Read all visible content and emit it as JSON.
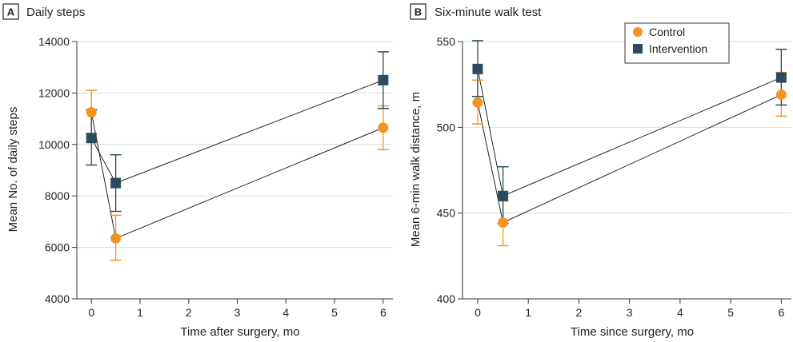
{
  "colors": {
    "control": "#f4941f",
    "intervention": "#2a4d5d",
    "ink": "#222222",
    "grid": "#dcdcdc"
  },
  "chart_data": [
    {
      "type": "line",
      "panel_letter": "A",
      "title": "Daily steps",
      "xlabel": "Time after surgery, mo",
      "ylabel": "Mean No. of daily steps",
      "xlim": [
        -0.3,
        6.2
      ],
      "ylim": [
        4000,
        14000
      ],
      "xticks": [
        0,
        1,
        2,
        3,
        4,
        5,
        6
      ],
      "yticks": [
        4000,
        6000,
        8000,
        10000,
        12000,
        14000
      ],
      "ytick_labels": [
        "4000",
        "6000",
        "8000",
        "10000",
        "12000",
        "14000"
      ],
      "grid": true,
      "legend": null,
      "series": [
        {
          "name": "Control",
          "marker": "circle",
          "color_key": "control",
          "x": [
            0,
            0.5,
            6
          ],
          "y": [
            11250,
            6350,
            10650
          ],
          "err_low": [
            10400,
            5500,
            9800
          ],
          "err_high": [
            12100,
            7250,
            11500
          ]
        },
        {
          "name": "Intervention",
          "marker": "square",
          "color_key": "intervention",
          "x": [
            0,
            0.5,
            6
          ],
          "y": [
            10250,
            8500,
            12500
          ],
          "err_low": [
            9200,
            7400,
            11400
          ],
          "err_high": [
            11350,
            9600,
            13600
          ]
        }
      ]
    },
    {
      "type": "line",
      "panel_letter": "B",
      "title": "Six-minute walk test",
      "xlabel": "Time since surgery, mo",
      "ylabel": "Mean 6-min walk distance, m",
      "xlim": [
        -0.3,
        6.2
      ],
      "ylim": [
        400,
        550
      ],
      "xticks": [
        0,
        1,
        2,
        3,
        4,
        5,
        6
      ],
      "yticks": [
        400,
        450,
        500,
        550
      ],
      "ytick_labels": [
        "400",
        "450",
        "500",
        "550"
      ],
      "grid": true,
      "legend": {
        "position": "top-right",
        "entries": [
          "Control",
          "Intervention"
        ]
      },
      "series": [
        {
          "name": "Control",
          "marker": "circle",
          "color_key": "control",
          "x": [
            0,
            0.5,
            6
          ],
          "y": [
            514.5,
            444.5,
            519
          ],
          "err_low": [
            502,
            431,
            506.5
          ],
          "err_high": [
            527.5,
            457,
            532
          ]
        },
        {
          "name": "Intervention",
          "marker": "square",
          "color_key": "intervention",
          "x": [
            0,
            0.5,
            6
          ],
          "y": [
            534,
            460,
            529
          ],
          "err_low": [
            518,
            444,
            513
          ],
          "err_high": [
            550.5,
            477,
            545.5
          ]
        }
      ]
    }
  ]
}
